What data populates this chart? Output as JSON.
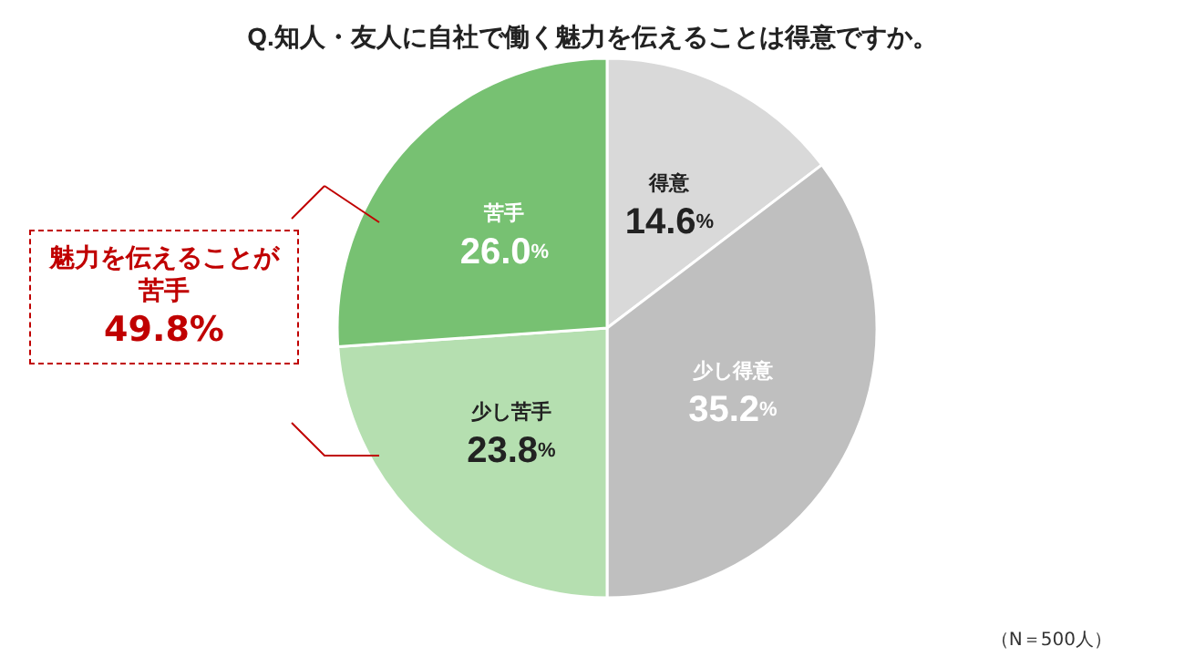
{
  "chart_data": {
    "type": "pie",
    "title": "Q.知人・友人に自社で働く魅力を伝えることは得意ですか。",
    "categories": [
      "得意",
      "少し得意",
      "少し苦手",
      "苦手"
    ],
    "values": [
      14.6,
      35.2,
      23.8,
      26.0
    ],
    "colors": [
      "#d9d9d9",
      "#bfbfbf",
      "#b5dfb0",
      "#77c172"
    ],
    "value_labels": [
      "14.6%",
      "35.2%",
      "23.8%",
      "26.0%"
    ],
    "annotations": [
      "魅力を伝えることが苦手",
      "49.8%",
      "（N＝500人）"
    ],
    "legend": false
  }
}
